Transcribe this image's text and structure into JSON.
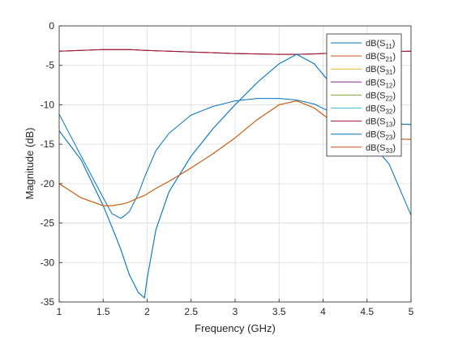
{
  "chart_data": {
    "type": "line",
    "title": "",
    "xlabel": "Frequency (GHz)",
    "ylabel": "Magnitude (dB)",
    "xlim": [
      1,
      5
    ],
    "ylim": [
      -35,
      0
    ],
    "xticks": [
      1,
      1.5,
      2,
      2.5,
      3,
      3.5,
      4,
      4.5,
      5
    ],
    "xtick_labels": [
      "1",
      "1.5",
      "2",
      "2.5",
      "3",
      "3.5",
      "4",
      "4.5",
      "5"
    ],
    "yticks": [
      0,
      -5,
      -10,
      -15,
      -20,
      -25,
      -30,
      -35
    ],
    "ytick_labels": [
      "0",
      "-5",
      "-10",
      "-15",
      "-20",
      "-25",
      "-30",
      "-35"
    ],
    "grid": true,
    "legend_position": "top-right",
    "x": [
      1.0,
      1.25,
      1.5,
      1.6,
      1.7,
      1.75,
      1.8,
      1.9,
      1.97,
      2.0,
      2.1,
      2.25,
      2.5,
      2.75,
      3.0,
      3.25,
      3.5,
      3.7,
      3.9,
      4.1,
      4.3,
      4.5,
      4.75,
      5.0
    ],
    "series": [
      {
        "base": "dB(S",
        "sub": "11",
        "color": "#0072BD",
        "values": [
          -11.2,
          -16.5,
          -21.8,
          -23.8,
          -24.4,
          -24.0,
          -23.5,
          -21.3,
          -19.2,
          -18.4,
          -15.8,
          -13.6,
          -11.3,
          -10.2,
          -9.5,
          -9.2,
          -9.2,
          -9.4,
          -9.9,
          -11.0,
          -12.4,
          -14.3,
          -17.5,
          -24.0
        ]
      },
      {
        "base": "dB(S",
        "sub": "21",
        "color": "#D95319",
        "values": [
          -3.2,
          -3.1,
          -3.0,
          -3.0,
          -3.0,
          -3.0,
          -3.0,
          -3.05,
          -3.1,
          -3.1,
          -3.15,
          -3.2,
          -3.3,
          -3.4,
          -3.5,
          -3.55,
          -3.6,
          -3.6,
          -3.55,
          -3.45,
          -3.35,
          -3.3,
          -3.25,
          -3.2
        ]
      },
      {
        "base": "dB(S",
        "sub": "31",
        "color": "#EDB120",
        "values": [
          -20.0,
          -21.8,
          -22.8,
          -22.8,
          -22.6,
          -22.5,
          -22.3,
          -21.8,
          -21.5,
          -21.3,
          -20.6,
          -19.7,
          -18.0,
          -16.2,
          -14.2,
          -11.9,
          -10.0,
          -9.5,
          -10.4,
          -12.1,
          -13.3,
          -14.0,
          -14.3,
          -14.4
        ]
      },
      {
        "base": "dB(S",
        "sub": "12",
        "color": "#7E2F8E",
        "values": [
          -3.2,
          -3.1,
          -3.0,
          -3.0,
          -3.0,
          -3.0,
          -3.0,
          -3.05,
          -3.1,
          -3.1,
          -3.15,
          -3.2,
          -3.3,
          -3.4,
          -3.5,
          -3.55,
          -3.6,
          -3.6,
          -3.55,
          -3.45,
          -3.35,
          -3.3,
          -3.25,
          -3.2
        ]
      },
      {
        "base": "dB(S",
        "sub": "22",
        "color": "#77AC30",
        "values": [
          -20.0,
          -21.8,
          -22.8,
          -22.8,
          -22.6,
          -22.5,
          -22.3,
          -21.8,
          -21.5,
          -21.3,
          -20.6,
          -19.7,
          -18.0,
          -16.2,
          -14.2,
          -11.9,
          -10.0,
          -9.5,
          -10.4,
          -12.1,
          -13.3,
          -14.0,
          -14.3,
          -14.4
        ]
      },
      {
        "base": "dB(S",
        "sub": "32",
        "color": "#4DBEEE",
        "values": [
          -13.3,
          -17.0,
          -22.8,
          -25.5,
          -28.3,
          -30.0,
          -31.6,
          -33.8,
          -34.5,
          -32.0,
          -25.8,
          -21.0,
          -16.5,
          -13.0,
          -10.0,
          -7.2,
          -4.8,
          -3.6,
          -4.8,
          -7.5,
          -10.0,
          -11.6,
          -12.4,
          -12.5
        ]
      },
      {
        "base": "dB(S",
        "sub": "13",
        "color": "#A2142F",
        "values": [
          -3.2,
          -3.1,
          -3.0,
          -3.0,
          -3.0,
          -3.0,
          -3.0,
          -3.05,
          -3.1,
          -3.1,
          -3.15,
          -3.2,
          -3.3,
          -3.4,
          -3.5,
          -3.55,
          -3.6,
          -3.6,
          -3.55,
          -3.45,
          -3.35,
          -3.3,
          -3.25,
          -3.2
        ]
      },
      {
        "base": "dB(S",
        "sub": "23",
        "color": "#0072BD",
        "values": [
          -13.3,
          -17.0,
          -22.8,
          -25.5,
          -28.3,
          -30.0,
          -31.6,
          -33.8,
          -34.5,
          -32.0,
          -25.8,
          -21.0,
          -16.5,
          -13.0,
          -10.0,
          -7.2,
          -4.8,
          -3.6,
          -4.8,
          -7.5,
          -10.0,
          -11.6,
          -12.4,
          -12.5
        ]
      },
      {
        "base": "dB(S",
        "sub": "33",
        "color": "#D95319",
        "values": [
          -20.0,
          -21.8,
          -22.8,
          -22.8,
          -22.6,
          -22.5,
          -22.3,
          -21.8,
          -21.5,
          -21.3,
          -20.6,
          -19.7,
          -18.0,
          -16.2,
          -14.2,
          -11.9,
          -10.0,
          -9.5,
          -10.4,
          -12.1,
          -13.3,
          -14.0,
          -14.3,
          -14.4
        ]
      }
    ]
  }
}
